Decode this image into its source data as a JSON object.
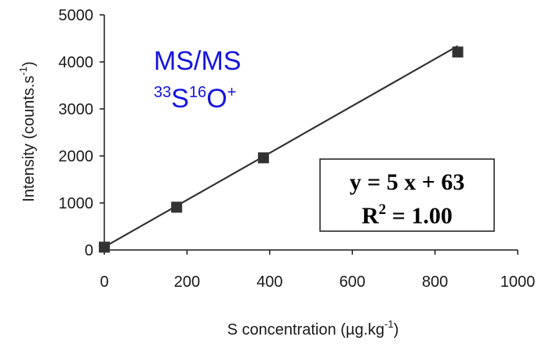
{
  "chart_data": {
    "type": "scatter",
    "xlabel": "S concentration (µg.kg",
    "xlabel_sup": "-1",
    "xlabel_end": ")",
    "ylabel": "Intensity (counts.s",
    "ylabel_sup": "-1",
    "ylabel_end": ")",
    "xlim": [
      0,
      1000
    ],
    "ylim": [
      0,
      5000
    ],
    "x_ticks": [
      "0",
      "200",
      "400",
      "600",
      "800",
      "1000"
    ],
    "y_ticks": [
      "0",
      "1000",
      "2000",
      "3000",
      "4000",
      "5000"
    ],
    "grid": false,
    "legend": "none",
    "series": [
      {
        "x": [
          0,
          175,
          385,
          855
        ],
        "y": [
          60,
          910,
          1960,
          4210
        ],
        "marker": "square",
        "color": "#333333"
      }
    ],
    "trendline": {
      "slope": 5,
      "intercept": 63,
      "color": "#333333"
    },
    "annotations": {
      "mode": "MS/MS",
      "ion_mass1": "33",
      "ion_element1": "S",
      "ion_mass2": "16",
      "ion_element2": "O",
      "ion_charge": "+",
      "equation": "y = 5 x + 63",
      "r2_prefix": "R",
      "r2_sup": "2",
      "r2_suffix": " = 1.00",
      "annotation_color": "#1414e0"
    }
  }
}
